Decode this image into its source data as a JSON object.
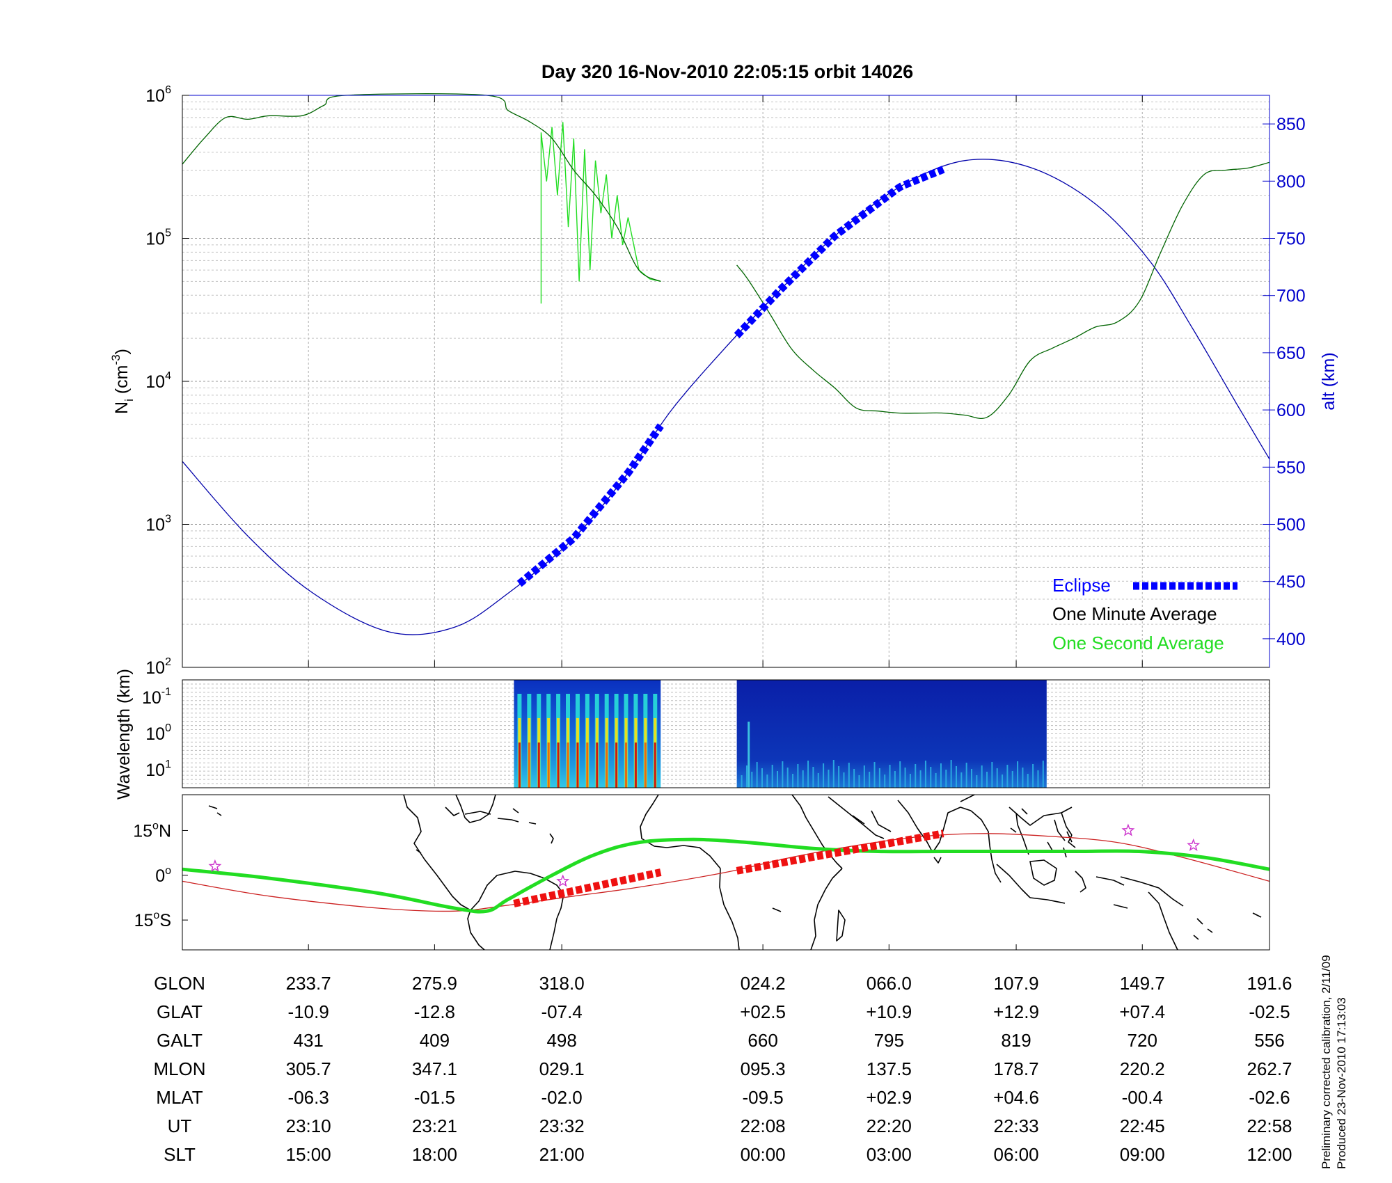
{
  "title": "Day 320  16-Nov-2010 22:05:15   orbit 14026",
  "chart_data": [
    {
      "type": "line",
      "panel": "density",
      "ylabel_left": "N_i (cm^-3)",
      "ylabel_left_parts": {
        "base": "N",
        "sub": "i",
        "unit_open": " (cm",
        "sup": "-3",
        "unit_close": ")"
      },
      "ylabel_right": "alt (km)",
      "y_left_scale": "log",
      "y_left_range": [
        100,
        1000000
      ],
      "y_left_ticks": [
        {
          "base": "10",
          "exp": "2",
          "value": 100
        },
        {
          "base": "10",
          "exp": "3",
          "value": 1000
        },
        {
          "base": "10",
          "exp": "4",
          "value": 10000
        },
        {
          "base": "10",
          "exp": "5",
          "value": 100000
        },
        {
          "base": "10",
          "exp": "6",
          "value": 1000000
        }
      ],
      "y_right_range": [
        375,
        875
      ],
      "y_right_ticks": [
        "400",
        "450",
        "500",
        "550",
        "600",
        "650",
        "700",
        "750",
        "800",
        "850"
      ],
      "grid": true,
      "legend_placement": "bottom-right",
      "legend": {
        "eclipse": "Eclipse",
        "one_minute": "One Minute Average",
        "one_second": "One Second Average"
      },
      "colors": {
        "altitude": "#0000aa",
        "eclipse": "#0000ff",
        "one_minute": "#006400",
        "one_second": "#22dd22"
      },
      "series": [
        {
          "id": "altitude",
          "axis": "right",
          "x": [
            0.0,
            0.06,
            0.12,
            0.19,
            0.25,
            0.3,
            0.36,
            0.41,
            0.45,
            0.5,
            0.55,
            0.6,
            0.66,
            0.72,
            0.78,
            0.84,
            0.89,
            0.93,
            0.97,
            1.0
          ],
          "y": [
            555,
            490,
            440,
            406,
            410,
            440,
            488,
            545,
            600,
            655,
            705,
            752,
            795,
            818,
            812,
            780,
            730,
            670,
            605,
            557
          ]
        },
        {
          "id": "eclipse",
          "axis": "right",
          "segments": [
            [
              0.31,
              0.44
            ],
            [
              0.51,
              0.7
            ]
          ]
        },
        {
          "id": "one_minute",
          "axis": "left",
          "x": [
            0.0,
            0.02,
            0.04,
            0.06,
            0.08,
            0.11,
            0.13,
            0.15,
            0.28,
            0.3,
            0.32,
            0.34,
            0.36,
            0.38,
            0.4,
            0.42,
            0.44,
            null,
            0.51,
            0.52,
            0.54,
            0.56,
            0.58,
            0.6,
            0.62,
            0.64,
            0.66,
            0.68,
            0.7,
            0.72,
            0.74,
            0.76,
            0.78,
            0.8,
            0.82,
            0.84,
            0.86,
            0.88,
            0.9,
            0.92,
            0.94,
            0.96,
            0.98,
            1.0
          ],
          "y": [
            330000,
            500000,
            700000,
            680000,
            720000,
            720000,
            850000,
            1000000,
            1000000,
            780000,
            650000,
            500000,
            300000,
            200000,
            120000,
            60000,
            50000,
            null,
            65000,
            52000,
            30000,
            17000,
            12000,
            9000,
            6500,
            6200,
            6000,
            6000,
            6000,
            5800,
            5600,
            8000,
            14000,
            17000,
            20000,
            24000,
            26000,
            36000,
            80000,
            170000,
            280000,
            300000,
            310000,
            340000
          ]
        },
        {
          "id": "one_second",
          "axis": "left",
          "x": [
            0.33,
            0.33,
            0.335,
            0.34,
            0.345,
            0.35,
            0.355,
            0.36,
            0.365,
            0.37,
            0.375,
            0.38,
            0.385,
            0.39,
            0.395,
            0.4,
            0.405,
            0.41,
            0.42,
            0.43,
            0.44
          ],
          "y": [
            35000,
            550000,
            250000,
            600000,
            200000,
            650000,
            120000,
            500000,
            50000,
            420000,
            60000,
            350000,
            150000,
            280000,
            100000,
            200000,
            90000,
            140000,
            60000,
            52000,
            50000
          ]
        }
      ]
    },
    {
      "type": "heatmap",
      "panel": "spectrogram",
      "ylabel": "Wavelength (km)",
      "y_scale": "log",
      "y_ticks": [
        {
          "base": "10",
          "exp": "-1"
        },
        {
          "base": "10",
          "exp": "0"
        },
        {
          "base": "10",
          "exp": "1"
        }
      ],
      "segments": [
        [
          0.305,
          0.44
        ],
        [
          0.51,
          0.795
        ]
      ],
      "colormap": "jet"
    },
    {
      "type": "line",
      "panel": "map",
      "y_ticks": [
        {
          "num": "15",
          "deg": "o",
          "hem": "N",
          "value": 15
        },
        {
          "num": "0",
          "deg": "o",
          "hem": "",
          "value": 0
        },
        {
          "num": "15",
          "deg": "o",
          "hem": "S",
          "value": -15
        }
      ],
      "y_range": [
        -25,
        27
      ],
      "colors": {
        "geographic": "#22dd22",
        "magnetic": "#cc2222",
        "eclipse": "#ee1111",
        "stars": "#cc33cc",
        "coast": "#000000"
      },
      "series": [
        {
          "id": "geographic_track",
          "x": [
            0.0,
            0.08,
            0.18,
            0.25,
            0.28,
            0.3,
            0.34,
            0.38,
            0.42,
            0.47,
            0.52,
            0.58,
            0.64,
            0.7,
            0.76,
            0.82,
            0.88,
            0.94,
            1.0
          ],
          "y": [
            2,
            -1,
            -6,
            -11,
            -12,
            -8,
            0,
            7,
            11,
            12,
            11,
            9,
            8,
            8,
            8,
            8,
            8,
            6,
            2
          ]
        },
        {
          "id": "magnetic_track",
          "x": [
            0.0,
            0.08,
            0.18,
            0.25,
            0.3,
            0.36,
            0.42,
            0.5,
            0.56,
            0.62,
            0.68,
            0.74,
            0.8,
            0.86,
            0.92,
            1.0
          ],
          "y": [
            -2,
            -7,
            -11,
            -12,
            -10,
            -7,
            -4,
            1,
            6,
            10,
            13,
            14,
            13,
            11,
            6,
            -2
          ]
        },
        {
          "id": "eclipse_track",
          "segments": [
            [
              0.305,
              -9.5,
              0.44,
              1
            ],
            [
              0.51,
              1.5,
              0.7,
              14
            ]
          ]
        },
        {
          "id": "stars",
          "x": [
            0.03,
            0.35,
            0.87,
            0.93
          ],
          "y": [
            3,
            -2,
            15,
            10
          ]
        }
      ]
    }
  ],
  "table": {
    "row_labels": [
      "GLON",
      "GLAT",
      "GALT",
      "MLON",
      "MLAT",
      "UT",
      "SLT"
    ],
    "columns": [
      {
        "x": 0.116,
        "values": [
          "233.7",
          "-10.9",
          "431",
          "305.7",
          "-06.3",
          "23:10",
          "15:00"
        ]
      },
      {
        "x": 0.232,
        "values": [
          "275.9",
          "-12.8",
          "409",
          "347.1",
          "-01.5",
          "23:21",
          "18:00"
        ]
      },
      {
        "x": 0.349,
        "values": [
          "318.0",
          "-07.4",
          "498",
          "029.1",
          "-02.0",
          "23:32",
          "21:00"
        ]
      },
      {
        "x": 0.534,
        "values": [
          "024.2",
          "+02.5",
          "660",
          "095.3",
          "-09.5",
          "22:08",
          "00:00"
        ]
      },
      {
        "x": 0.65,
        "values": [
          "066.0",
          "+10.9",
          "795",
          "137.5",
          "+02.9",
          "22:20",
          "03:00"
        ]
      },
      {
        "x": 0.767,
        "values": [
          "107.9",
          "+12.9",
          "819",
          "178.7",
          "+04.6",
          "22:33",
          "06:00"
        ]
      },
      {
        "x": 0.883,
        "values": [
          "149.7",
          "+07.4",
          "720",
          "220.2",
          "-00.4",
          "22:45",
          "09:00"
        ]
      },
      {
        "x": 1.0,
        "values": [
          "191.6",
          "-02.5",
          "556",
          "262.7",
          "-02.6",
          "22:58",
          "12:00"
        ]
      }
    ]
  },
  "notes": {
    "line1": "Preliminary corrected calibration, 2/11/09",
    "line2": "Produced 23-Nov-2010 17:13:03"
  }
}
